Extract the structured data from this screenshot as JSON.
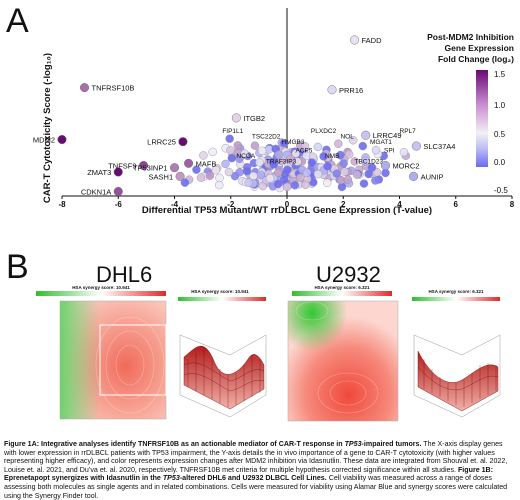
{
  "panel_a": {
    "letter": "A",
    "legend_title": [
      "Post-MDM2 Inhibition",
      "Gene Expression",
      "Fold Change (log₂)"
    ],
    "colorbar_ticks": [
      "1.5",
      "1.0",
      "0.5",
      "0.0",
      "-0.5"
    ],
    "colors": {
      "high": "#6a0a74",
      "mid": "#f3f0f5",
      "low": "#6b6bf0"
    }
  },
  "panel_b": {
    "letter": "B",
    "cell_lines": [
      "DHL6",
      "U2932"
    ],
    "synergy_labels": [
      "HSA synergy score: 10.941",
      "HSA synergy score: 10.941",
      "HSA synergy score: 6.321",
      "HSA synergy score: 6.321"
    ]
  },
  "chart_data": {
    "type": "scatter",
    "xlabel": "Differential TP53 Mutant/WT rrDLBCL Gene Expression (T-value)",
    "ylabel": "CAR-T Cytotoxicity Score (-log₁₀)",
    "x_ticks": [
      "-8",
      "-6",
      "-4",
      "-2",
      "0",
      "2",
      "4",
      "6",
      "8"
    ],
    "xlim": [
      -8,
      8
    ],
    "grid": false,
    "legend": "top-right colorbar",
    "labeled_points": [
      {
        "label": "FADD",
        "x": 2.4,
        "y": 6.1,
        "fc": 0.1
      },
      {
        "label": "TNFRSF10B",
        "x": -7.2,
        "y": 3.9,
        "fc": 0.9
      },
      {
        "label": "PRR16",
        "x": 1.6,
        "y": 3.8,
        "fc": -0.1
      },
      {
        "label": "MDM2",
        "x": -8.0,
        "y": 1.5,
        "fc": 1.6
      },
      {
        "label": "LRRC25",
        "x": -3.7,
        "y": 1.4,
        "fc": 1.6
      },
      {
        "label": "ITGB2",
        "x": -1.8,
        "y": 2.5,
        "fc": 0.2
      },
      {
        "label": "SLC37A4",
        "x": 4.6,
        "y": 1.2,
        "fc": -0.2
      },
      {
        "label": "ZMAT3",
        "x": -6.0,
        "y": 0.0,
        "fc": 1.6
      },
      {
        "label": "TNFSF9",
        "x": -5.1,
        "y": 0.3,
        "fc": 1.2
      },
      {
        "label": "TP53INP1",
        "x": -4.0,
        "y": 0.2,
        "fc": 0.8
      },
      {
        "label": "MAFB",
        "x": -3.5,
        "y": 0.4,
        "fc": 1.0
      },
      {
        "label": "CDKN1A",
        "x": -6.0,
        "y": -0.9,
        "fc": 1.1
      },
      {
        "label": "LRRC49",
        "x": 2.8,
        "y": 1.7,
        "fc": -0.2
      },
      {
        "label": "MORC2",
        "x": 3.5,
        "y": 0.3,
        "fc": -0.3
      },
      {
        "label": "AUNIP",
        "x": 4.5,
        "y": -0.2,
        "fc": -0.3
      },
      {
        "label": "SASH1",
        "x": -3.8,
        "y": -0.2,
        "fc": 0.6
      }
    ],
    "background_labels": [
      "FIP1L1",
      "TSC22D2",
      "HMGB3",
      "PLXDC2",
      "NOL",
      "MGAT1",
      "RPL7",
      "NCOA",
      "TRAF3IP3",
      "ACP5",
      "NMB",
      "TBC1D23",
      "SPI"
    ]
  },
  "figure_caption": {
    "bold1": "Figure 1A: Integrative analyses identify TNFRSF10B as an actionable mediator of CAR-T response in ",
    "bold1_italic": "TP53",
    "bold1_end": "-impaired tumors.",
    "text1": " The X-axis display genes with lower expression in rrDLBCL patients with TP53 impairment, the Y-axis details the in vivo importance of a gene to CAR-T cytotoxicity (with higher values representing higher efficacy), and color represents expression changes after MDM2 inhibition via Idasnutlin. These data are integrated from Shouval et. al. 2022, Louise et. al. 2021, and Du’va et. al. 2020, respectively. TNFRSF10B met criteria for multiple hypothesis corrected significance within all studies. ",
    "bold2": "Figure 1B: Eprenetapopt synergizes with Idasnutlin in the ",
    "bold2_italic": "TP53",
    "bold2_end": "-altered DHL6 and U2932 DLBCL Cell Lines.",
    "text2": " Cell viability was measured across a range of doses assessing both molecules as single agents and in related combinations. Cells were measured for viability using Alamar Blue and synergy scores were calculated using the Synergy Finder tool."
  }
}
